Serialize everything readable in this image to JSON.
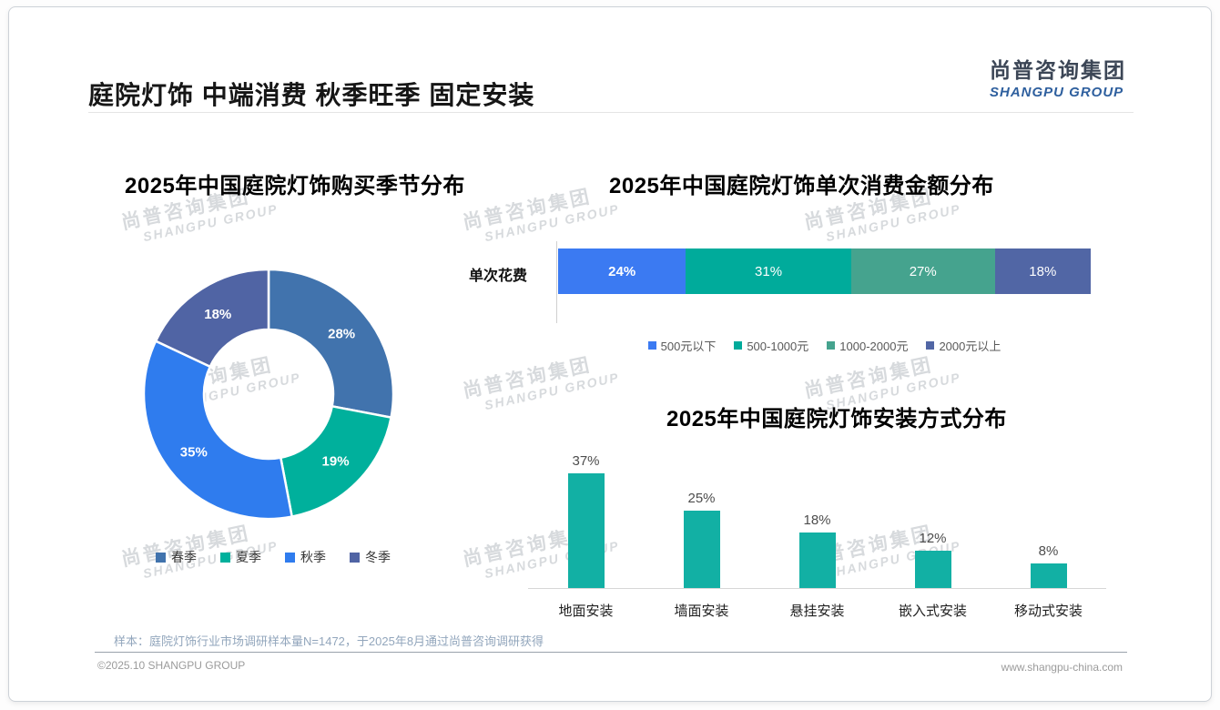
{
  "page": {
    "title": "庭院灯饰 中端消费 秋季旺季 固定安装",
    "logo": {
      "cn": "尚普咨询集团",
      "en": "SHANGPU GROUP"
    },
    "watermark": {
      "line1": "尚普咨询集团",
      "line2": "SHANGPU GROUP"
    },
    "footer": {
      "note": "样本：庭院灯饰行业市场调研样本量N=1472，于2025年8月通过尚普咨询调研获得",
      "copyright": "©2025.10 SHANGPU GROUP",
      "website": "www.shangpu-china.com"
    }
  },
  "chart_data": [
    {
      "type": "pie",
      "variant": "donut",
      "title": "2025年中国庭院灯饰购买季节分布",
      "categories": [
        "春季",
        "夏季",
        "秋季",
        "冬季"
      ],
      "values": [
        28,
        19,
        35,
        18
      ],
      "unit": "%",
      "colors": [
        "#4173ad",
        "#00b09c",
        "#2f7cee",
        "#5064a4"
      ],
      "legend_position": "bottom"
    },
    {
      "type": "bar",
      "variant": "horizontal-stacked",
      "title": "2025年中国庭院灯饰单次消费金额分布",
      "category_label": "单次花费",
      "series": [
        "500元以下",
        "500-1000元",
        "1000-2000元",
        "2000元以上"
      ],
      "values": [
        24,
        31,
        27,
        18
      ],
      "unit": "%",
      "colors": [
        "#3b7af2",
        "#00ab9b",
        "#45a38e",
        "#5166a5"
      ],
      "legend_position": "bottom"
    },
    {
      "type": "bar",
      "variant": "vertical",
      "title": "2025年中国庭院灯饰安装方式分布",
      "categories": [
        "地面安装",
        "墙面安装",
        "悬挂安装",
        "嵌入式安装",
        "移动式安装"
      ],
      "values": [
        37,
        25,
        18,
        12,
        8
      ],
      "unit": "%",
      "bar_color": "#12b0a4",
      "ylim": [
        0,
        40
      ],
      "grid": false
    }
  ]
}
